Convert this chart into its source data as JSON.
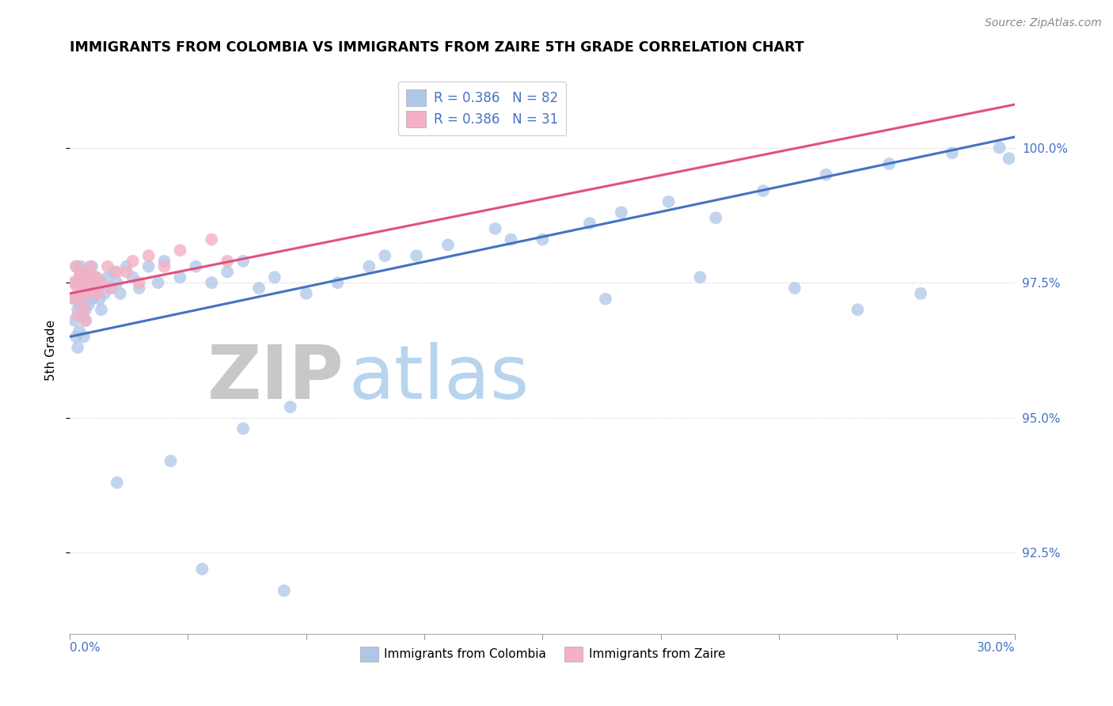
{
  "title": "IMMIGRANTS FROM COLOMBIA VS IMMIGRANTS FROM ZAIRE 5TH GRADE CORRELATION CHART",
  "source_text": "Source: ZipAtlas.com",
  "ylabel": "5th Grade",
  "xmin": 0.0,
  "xmax": 30.0,
  "ymin": 91.0,
  "ymax": 101.5,
  "yticks": [
    92.5,
    95.0,
    97.5,
    100.0
  ],
  "ytick_labels": [
    "92.5%",
    "95.0%",
    "97.5%",
    "100.0%"
  ],
  "legend1_label": "R = 0.386   N = 82",
  "legend2_label": "R = 0.386   N = 31",
  "colombia_color": "#aec6e8",
  "zaire_color": "#f4b0c4",
  "trendline_colombia_color": "#4472c4",
  "trendline_zaire_color": "#e05080",
  "watermark_zip": "ZIP",
  "watermark_atlas": "atlas",
  "watermark_zip_color": "#c8c8c8",
  "watermark_atlas_color": "#b8d4ee",
  "colombia_x": [
    0.15,
    0.15,
    0.2,
    0.2,
    0.2,
    0.25,
    0.25,
    0.3,
    0.3,
    0.3,
    0.35,
    0.35,
    0.4,
    0.4,
    0.4,
    0.45,
    0.45,
    0.5,
    0.5,
    0.5,
    0.55,
    0.6,
    0.6,
    0.65,
    0.7,
    0.7,
    0.75,
    0.8,
    0.85,
    0.9,
    0.95,
    1.0,
    1.0,
    1.1,
    1.2,
    1.3,
    1.4,
    1.5,
    1.6,
    1.8,
    2.0,
    2.2,
    2.5,
    2.8,
    3.0,
    3.5,
    4.0,
    4.5,
    5.0,
    5.5,
    6.0,
    6.5,
    7.5,
    8.5,
    9.5,
    11.0,
    12.0,
    13.5,
    15.0,
    16.5,
    17.5,
    19.0,
    20.5,
    22.0,
    24.0,
    26.0,
    28.0,
    29.5,
    29.8,
    17.0,
    20.0,
    23.0,
    25.0,
    27.0,
    10.0,
    14.0,
    5.5,
    7.0,
    3.2,
    1.5,
    4.2,
    6.8
  ],
  "colombia_y": [
    97.2,
    96.8,
    97.5,
    96.5,
    97.8,
    97.0,
    96.3,
    97.6,
    97.1,
    96.6,
    97.3,
    97.8,
    97.4,
    96.9,
    97.7,
    97.2,
    96.5,
    97.5,
    97.0,
    96.8,
    97.3,
    97.1,
    97.6,
    97.4,
    97.2,
    97.8,
    97.5,
    97.3,
    97.6,
    97.4,
    97.2,
    97.5,
    97.0,
    97.3,
    97.6,
    97.4,
    97.7,
    97.5,
    97.3,
    97.8,
    97.6,
    97.4,
    97.8,
    97.5,
    97.9,
    97.6,
    97.8,
    97.5,
    97.7,
    97.9,
    97.4,
    97.6,
    97.3,
    97.5,
    97.8,
    98.0,
    98.2,
    98.5,
    98.3,
    98.6,
    98.8,
    99.0,
    98.7,
    99.2,
    99.5,
    99.7,
    99.9,
    100.0,
    99.8,
    97.2,
    97.6,
    97.4,
    97.0,
    97.3,
    98.0,
    98.3,
    94.8,
    95.2,
    94.2,
    93.8,
    92.2,
    91.8
  ],
  "zaire_x": [
    0.1,
    0.15,
    0.2,
    0.25,
    0.25,
    0.3,
    0.35,
    0.35,
    0.4,
    0.45,
    0.5,
    0.5,
    0.55,
    0.6,
    0.65,
    0.7,
    0.8,
    1.0,
    1.2,
    1.5,
    2.0,
    2.5,
    3.0,
    4.5,
    2.2,
    1.8,
    0.9,
    0.75,
    1.3,
    3.5,
    5.0
  ],
  "zaire_y": [
    97.5,
    97.2,
    97.8,
    96.9,
    97.4,
    97.6,
    97.2,
    97.7,
    97.3,
    97.0,
    97.5,
    96.8,
    97.6,
    97.3,
    97.8,
    97.4,
    97.6,
    97.5,
    97.8,
    97.7,
    97.9,
    98.0,
    97.8,
    98.3,
    97.5,
    97.7,
    97.3,
    97.6,
    97.4,
    98.1,
    97.9
  ],
  "blue_trend_x0": 0.0,
  "blue_trend_y0": 96.5,
  "blue_trend_x1": 30.0,
  "blue_trend_y1": 100.2,
  "pink_trend_x0": 0.0,
  "pink_trend_y0": 97.3,
  "pink_trend_x1": 30.0,
  "pink_trend_y1": 100.8
}
